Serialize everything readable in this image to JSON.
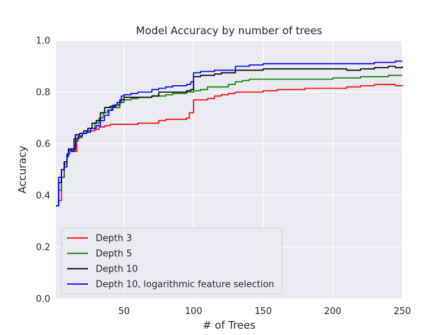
{
  "chart_data": {
    "type": "line",
    "title": "Model Accuracy by number of trees",
    "xlabel": "# of Trees",
    "ylabel": "Accuracy",
    "xlim": [
      1,
      250
    ],
    "ylim": [
      0,
      1
    ],
    "xticks": [
      50,
      100,
      150,
      200,
      250
    ],
    "yticks": [
      0.0,
      0.2,
      0.4,
      0.6,
      0.8,
      1.0
    ],
    "ytick_labels": [
      "0.0",
      "0.2",
      "0.4",
      "0.6",
      "0.8",
      "1.0"
    ],
    "grid": true,
    "legend_position": "lower-left",
    "series": [
      {
        "name": "Depth 3",
        "color": "#ff0000",
        "points": [
          [
            1,
            0.36
          ],
          [
            3,
            0.38
          ],
          [
            5,
            0.47
          ],
          [
            7,
            0.52
          ],
          [
            9,
            0.55
          ],
          [
            10,
            0.58
          ],
          [
            12,
            0.575
          ],
          [
            14,
            0.57
          ],
          [
            16,
            0.62
          ],
          [
            18,
            0.63
          ],
          [
            20,
            0.64
          ],
          [
            23,
            0.645
          ],
          [
            26,
            0.65
          ],
          [
            29,
            0.655
          ],
          [
            32,
            0.665
          ],
          [
            36,
            0.67
          ],
          [
            40,
            0.675
          ],
          [
            45,
            0.675
          ],
          [
            50,
            0.675
          ],
          [
            55,
            0.675
          ],
          [
            60,
            0.68
          ],
          [
            65,
            0.68
          ],
          [
            70,
            0.68
          ],
          [
            75,
            0.69
          ],
          [
            80,
            0.695
          ],
          [
            85,
            0.695
          ],
          [
            90,
            0.695
          ],
          [
            95,
            0.7
          ],
          [
            97,
            0.72
          ],
          [
            100,
            0.77
          ],
          [
            105,
            0.77
          ],
          [
            110,
            0.775
          ],
          [
            115,
            0.785
          ],
          [
            120,
            0.79
          ],
          [
            125,
            0.795
          ],
          [
            130,
            0.8
          ],
          [
            135,
            0.8
          ],
          [
            140,
            0.8
          ],
          [
            145,
            0.8
          ],
          [
            150,
            0.805
          ],
          [
            155,
            0.805
          ],
          [
            160,
            0.81
          ],
          [
            170,
            0.81
          ],
          [
            180,
            0.815
          ],
          [
            190,
            0.815
          ],
          [
            200,
            0.815
          ],
          [
            210,
            0.82
          ],
          [
            220,
            0.825
          ],
          [
            230,
            0.83
          ],
          [
            240,
            0.83
          ],
          [
            245,
            0.825
          ],
          [
            250,
            0.828
          ]
        ]
      },
      {
        "name": "Depth 5",
        "color": "#008000",
        "points": [
          [
            1,
            0.36
          ],
          [
            3,
            0.42
          ],
          [
            5,
            0.47
          ],
          [
            7,
            0.53
          ],
          [
            9,
            0.56
          ],
          [
            11,
            0.575
          ],
          [
            13,
            0.575
          ],
          [
            15,
            0.61
          ],
          [
            17,
            0.625
          ],
          [
            20,
            0.64
          ],
          [
            23,
            0.65
          ],
          [
            26,
            0.66
          ],
          [
            29,
            0.68
          ],
          [
            32,
            0.7
          ],
          [
            35,
            0.72
          ],
          [
            38,
            0.73
          ],
          [
            41,
            0.74
          ],
          [
            44,
            0.74
          ],
          [
            47,
            0.76
          ],
          [
            50,
            0.77
          ],
          [
            55,
            0.775
          ],
          [
            60,
            0.78
          ],
          [
            65,
            0.78
          ],
          [
            70,
            0.785
          ],
          [
            75,
            0.785
          ],
          [
            80,
            0.79
          ],
          [
            85,
            0.795
          ],
          [
            90,
            0.795
          ],
          [
            95,
            0.8
          ],
          [
            98,
            0.8
          ],
          [
            100,
            0.805
          ],
          [
            105,
            0.81
          ],
          [
            110,
            0.82
          ],
          [
            115,
            0.82
          ],
          [
            120,
            0.82
          ],
          [
            125,
            0.83
          ],
          [
            130,
            0.84
          ],
          [
            135,
            0.845
          ],
          [
            140,
            0.85
          ],
          [
            145,
            0.85
          ],
          [
            150,
            0.85
          ],
          [
            160,
            0.85
          ],
          [
            170,
            0.85
          ],
          [
            180,
            0.85
          ],
          [
            190,
            0.85
          ],
          [
            200,
            0.855
          ],
          [
            210,
            0.855
          ],
          [
            220,
            0.86
          ],
          [
            230,
            0.86
          ],
          [
            240,
            0.865
          ],
          [
            250,
            0.865
          ]
        ]
      },
      {
        "name": "Depth 10",
        "color": "#000000",
        "points": [
          [
            1,
            0.36
          ],
          [
            3,
            0.45
          ],
          [
            5,
            0.5
          ],
          [
            7,
            0.53
          ],
          [
            9,
            0.56
          ],
          [
            10,
            0.58
          ],
          [
            13,
            0.58
          ],
          [
            15,
            0.635
          ],
          [
            18,
            0.64
          ],
          [
            21,
            0.65
          ],
          [
            24,
            0.66
          ],
          [
            27,
            0.68
          ],
          [
            30,
            0.69
          ],
          [
            33,
            0.72
          ],
          [
            36,
            0.74
          ],
          [
            40,
            0.745
          ],
          [
            44,
            0.75
          ],
          [
            47,
            0.77
          ],
          [
            50,
            0.78
          ],
          [
            55,
            0.78
          ],
          [
            60,
            0.78
          ],
          [
            65,
            0.78
          ],
          [
            70,
            0.785
          ],
          [
            75,
            0.8
          ],
          [
            80,
            0.8
          ],
          [
            85,
            0.8
          ],
          [
            90,
            0.8
          ],
          [
            95,
            0.805
          ],
          [
            98,
            0.81
          ],
          [
            100,
            0.86
          ],
          [
            105,
            0.865
          ],
          [
            110,
            0.865
          ],
          [
            115,
            0.87
          ],
          [
            120,
            0.875
          ],
          [
            125,
            0.875
          ],
          [
            130,
            0.885
          ],
          [
            135,
            0.885
          ],
          [
            140,
            0.885
          ],
          [
            145,
            0.885
          ],
          [
            150,
            0.89
          ],
          [
            160,
            0.89
          ],
          [
            170,
            0.89
          ],
          [
            180,
            0.89
          ],
          [
            190,
            0.89
          ],
          [
            200,
            0.89
          ],
          [
            210,
            0.885
          ],
          [
            220,
            0.89
          ],
          [
            230,
            0.895
          ],
          [
            240,
            0.9
          ],
          [
            245,
            0.895
          ],
          [
            250,
            0.9
          ]
        ]
      },
      {
        "name": "Depth 10, logarithmic feature selection",
        "color": "#0000ff",
        "points": [
          [
            1,
            0.36
          ],
          [
            3,
            0.47
          ],
          [
            5,
            0.5
          ],
          [
            7,
            0.51
          ],
          [
            9,
            0.55
          ],
          [
            10,
            0.58
          ],
          [
            12,
            0.57
          ],
          [
            14,
            0.62
          ],
          [
            17,
            0.63
          ],
          [
            20,
            0.64
          ],
          [
            23,
            0.645
          ],
          [
            26,
            0.66
          ],
          [
            30,
            0.67
          ],
          [
            33,
            0.69
          ],
          [
            36,
            0.71
          ],
          [
            39,
            0.73
          ],
          [
            42,
            0.75
          ],
          [
            45,
            0.76
          ],
          [
            48,
            0.785
          ],
          [
            50,
            0.79
          ],
          [
            55,
            0.795
          ],
          [
            60,
            0.8
          ],
          [
            65,
            0.8
          ],
          [
            70,
            0.81
          ],
          [
            75,
            0.815
          ],
          [
            80,
            0.82
          ],
          [
            85,
            0.825
          ],
          [
            90,
            0.825
          ],
          [
            95,
            0.83
          ],
          [
            98,
            0.84
          ],
          [
            100,
            0.875
          ],
          [
            105,
            0.88
          ],
          [
            110,
            0.88
          ],
          [
            115,
            0.885
          ],
          [
            120,
            0.885
          ],
          [
            125,
            0.885
          ],
          [
            130,
            0.9
          ],
          [
            135,
            0.9
          ],
          [
            140,
            0.905
          ],
          [
            145,
            0.905
          ],
          [
            150,
            0.91
          ],
          [
            160,
            0.91
          ],
          [
            170,
            0.91
          ],
          [
            180,
            0.91
          ],
          [
            190,
            0.91
          ],
          [
            200,
            0.91
          ],
          [
            210,
            0.91
          ],
          [
            220,
            0.91
          ],
          [
            230,
            0.915
          ],
          [
            240,
            0.915
          ],
          [
            245,
            0.92
          ],
          [
            250,
            0.92
          ]
        ]
      }
    ]
  }
}
